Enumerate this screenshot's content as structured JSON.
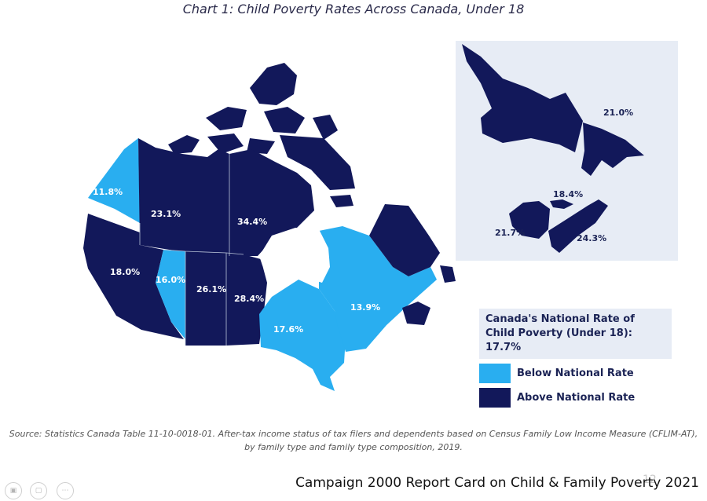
{
  "title": "Chart 1: Child Poverty Rates Across Canada, Under 18",
  "colors": {
    "above": "#12185a",
    "below": "#29aef0",
    "inset_bg": "#e7ecf5",
    "label_text": "#ffffff",
    "inset_label_text": "#1b2355"
  },
  "national_rate": 17.7,
  "regions": [
    {
      "name": "Yukon",
      "value": 11.8,
      "label": "11.8%",
      "category": "below"
    },
    {
      "name": "Northwest Territories",
      "value": 23.1,
      "label": "23.1%",
      "category": "above"
    },
    {
      "name": "Nunavut",
      "value": 34.4,
      "label": "34.4%",
      "category": "above"
    },
    {
      "name": "British Columbia",
      "value": 18.0,
      "label": "18.0%",
      "category": "above"
    },
    {
      "name": "Alberta",
      "value": 16.0,
      "label": "16.0%",
      "category": "below"
    },
    {
      "name": "Saskatchewan",
      "value": 26.1,
      "label": "26.1%",
      "category": "above"
    },
    {
      "name": "Manitoba",
      "value": 28.4,
      "label": "28.4%",
      "category": "above"
    },
    {
      "name": "Ontario",
      "value": 17.6,
      "label": "17.6%",
      "category": "below"
    },
    {
      "name": "Quebec",
      "value": 13.9,
      "label": "13.9%",
      "category": "below"
    },
    {
      "name": "Newfoundland and Labrador",
      "value": 21.0,
      "label": "21.0%",
      "category": "above"
    },
    {
      "name": "Prince Edward Island",
      "value": 18.4,
      "label": "18.4%",
      "category": "above"
    },
    {
      "name": "New Brunswick",
      "value": 21.7,
      "label": "21.7%",
      "category": "above"
    },
    {
      "name": "Nova Scotia",
      "value": 24.3,
      "label": "24.3%",
      "category": "above"
    }
  ],
  "legend": {
    "heading": "Canada's National Rate of Child Poverty (Under 18): 17.7%",
    "below_label": "Below National Rate",
    "above_label": "Above National Rate"
  },
  "source": "Source: Statistics Canada Table 11-10-0018-01. After-tax income status of tax filers and dependents based on Census Family Low Income Measure (CFLIM-AT), by family type and family type composition, 2019.",
  "footer": "Campaign 2000 Report Card on Child & Family Poverty 2021",
  "page_number": "12"
}
